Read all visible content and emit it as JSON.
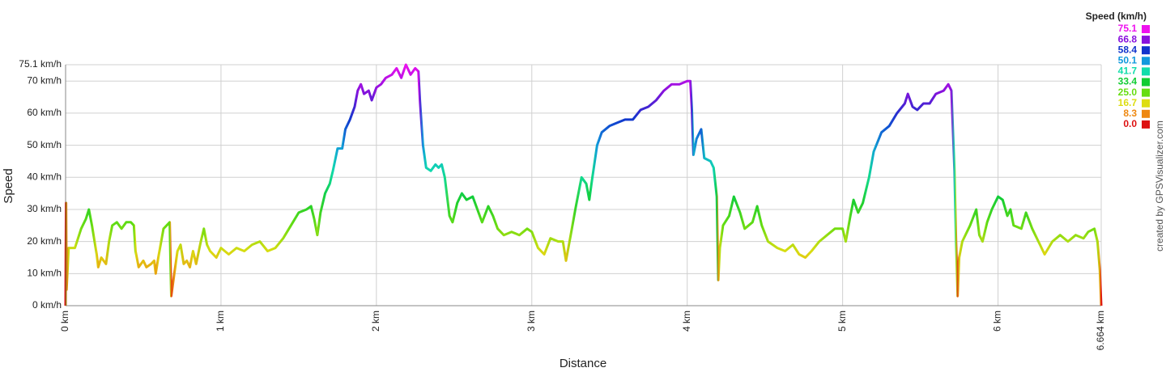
{
  "chart_data": {
    "type": "line",
    "title": "Speed (km/h)",
    "credit": "created by GPSVisualizer.com",
    "x_label": "Distance",
    "y_label": "Speed",
    "xlim": [
      0,
      6.664
    ],
    "ylim": [
      0,
      75.1
    ],
    "xticks": [
      {
        "value": 0,
        "label": "0 km"
      },
      {
        "value": 1,
        "label": "1 km"
      },
      {
        "value": 2,
        "label": "2 km"
      },
      {
        "value": 3,
        "label": "3 km"
      },
      {
        "value": 4,
        "label": "4 km"
      },
      {
        "value": 5,
        "label": "5 km"
      },
      {
        "value": 6,
        "label": "6 km"
      },
      {
        "value": 6.664,
        "label": "6.664 km"
      }
    ],
    "yticks": [
      {
        "value": 0,
        "label": "0 km/h"
      },
      {
        "value": 10,
        "label": "10 km/h"
      },
      {
        "value": 20,
        "label": "20 km/h"
      },
      {
        "value": 30,
        "label": "30 km/h"
      },
      {
        "value": 40,
        "label": "40 km/h"
      },
      {
        "value": 50,
        "label": "50 km/h"
      },
      {
        "value": 60,
        "label": "60 km/h"
      },
      {
        "value": 70,
        "label": "70 km/h"
      },
      {
        "value": 75.1,
        "label": "75.1 km/h"
      }
    ],
    "grid": true,
    "color_scale": [
      {
        "value": 75.1,
        "label": "75.1",
        "color": "#ee11ee"
      },
      {
        "value": 66.8,
        "label": "66.8",
        "color": "#8811dd"
      },
      {
        "value": 58.4,
        "label": "58.4",
        "color": "#1133cc"
      },
      {
        "value": 50.1,
        "label": "50.1",
        "color": "#1199dd"
      },
      {
        "value": 41.7,
        "label": "41.7",
        "color": "#11ddaa"
      },
      {
        "value": 33.4,
        "label": "33.4",
        "color": "#11cc33"
      },
      {
        "value": 25.0,
        "label": "25.0",
        "color": "#66dd11"
      },
      {
        "value": 16.7,
        "label": "16.7",
        "color": "#dddd11"
      },
      {
        "value": 8.3,
        "label": "8.3",
        "color": "#ee8811"
      },
      {
        "value": 0.0,
        "label": "0.0",
        "color": "#dd1111"
      }
    ],
    "x": [
      0,
      0.003,
      0.006,
      0.02,
      0.06,
      0.1,
      0.13,
      0.15,
      0.17,
      0.2,
      0.21,
      0.23,
      0.26,
      0.28,
      0.3,
      0.33,
      0.36,
      0.39,
      0.42,
      0.44,
      0.45,
      0.47,
      0.5,
      0.52,
      0.55,
      0.57,
      0.58,
      0.6,
      0.63,
      0.65,
      0.67,
      0.675,
      0.68,
      0.7,
      0.72,
      0.74,
      0.76,
      0.78,
      0.8,
      0.82,
      0.84,
      0.87,
      0.89,
      0.91,
      0.93,
      0.97,
      1.0,
      1.05,
      1.1,
      1.15,
      1.2,
      1.25,
      1.3,
      1.35,
      1.4,
      1.45,
      1.5,
      1.55,
      1.58,
      1.6,
      1.62,
      1.64,
      1.67,
      1.7,
      1.72,
      1.75,
      1.78,
      1.8,
      1.83,
      1.86,
      1.88,
      1.9,
      1.92,
      1.95,
      1.97,
      2.0,
      2.03,
      2.06,
      2.1,
      2.13,
      2.16,
      2.19,
      2.22,
      2.25,
      2.27,
      2.28,
      2.3,
      2.32,
      2.35,
      2.38,
      2.4,
      2.42,
      2.44,
      2.47,
      2.49,
      2.52,
      2.55,
      2.58,
      2.62,
      2.65,
      2.68,
      2.72,
      2.75,
      2.78,
      2.82,
      2.87,
      2.92,
      2.97,
      3.0,
      3.04,
      3.08,
      3.12,
      3.17,
      3.2,
      3.22,
      3.25,
      3.28,
      3.32,
      3.35,
      3.37,
      3.39,
      3.42,
      3.45,
      3.5,
      3.55,
      3.6,
      3.65,
      3.7,
      3.75,
      3.8,
      3.85,
      3.9,
      3.95,
      4.0,
      4.02,
      4.03,
      4.04,
      4.06,
      4.09,
      4.11,
      4.15,
      4.17,
      4.19,
      4.2,
      4.21,
      4.23,
      4.27,
      4.3,
      4.34,
      4.37,
      4.42,
      4.45,
      4.48,
      4.52,
      4.58,
      4.63,
      4.68,
      4.72,
      4.76,
      4.8,
      4.85,
      4.9,
      4.95,
      5.0,
      5.02,
      5.05,
      5.07,
      5.1,
      5.13,
      5.17,
      5.2,
      5.25,
      5.3,
      5.35,
      5.4,
      5.42,
      5.45,
      5.48,
      5.52,
      5.56,
      5.6,
      5.65,
      5.68,
      5.7,
      5.72,
      5.73,
      5.74,
      5.75,
      5.77,
      5.82,
      5.86,
      5.88,
      5.9,
      5.93,
      5.96,
      6.0,
      6.03,
      6.06,
      6.08,
      6.1,
      6.15,
      6.18,
      6.22,
      6.27,
      6.3,
      6.35,
      6.4,
      6.45,
      6.5,
      6.55,
      6.58,
      6.62,
      6.64,
      6.655,
      6.664
    ],
    "series": [
      {
        "name": "Speed",
        "values": [
          0,
          32,
          5,
          18,
          18,
          24,
          27,
          30,
          25,
          16,
          12,
          15,
          13,
          20,
          25,
          26,
          24,
          26,
          26,
          25,
          17,
          12,
          14,
          12,
          13,
          14,
          10,
          16,
          24,
          25,
          26,
          13,
          3,
          10,
          17,
          19,
          13,
          14,
          12,
          17,
          13,
          20,
          24,
          19,
          17,
          15,
          18,
          16,
          18,
          17,
          19,
          20,
          17,
          18,
          21,
          25,
          29,
          30,
          31,
          27,
          22,
          29,
          35,
          38,
          42,
          49,
          49,
          55,
          58,
          62,
          67,
          69,
          66,
          67,
          64,
          68,
          69,
          71,
          72,
          74,
          71,
          75.1,
          72,
          74,
          73,
          64,
          50,
          43,
          42,
          44,
          43,
          44,
          40,
          28,
          26,
          32,
          35,
          33,
          34,
          30,
          26,
          31,
          28,
          24,
          22,
          23,
          22,
          24,
          23,
          18,
          16,
          21,
          20,
          20,
          14,
          22,
          30,
          40,
          38,
          33,
          40,
          50,
          54,
          56,
          57,
          58,
          58,
          61,
          62,
          64,
          67,
          69,
          69,
          70,
          70,
          61,
          47,
          52,
          55,
          46,
          45,
          43,
          34,
          8,
          18,
          25,
          28,
          34,
          29,
          24,
          26,
          31,
          25,
          20,
          18,
          17,
          19,
          16,
          15,
          17,
          20,
          22,
          24,
          24,
          20,
          28,
          33,
          29,
          32,
          40,
          48,
          54,
          56,
          60,
          63,
          66,
          62,
          61,
          63,
          63,
          66,
          67,
          69,
          67,
          42,
          20,
          3,
          15,
          20,
          25,
          30,
          22,
          20,
          26,
          30,
          34,
          33,
          28,
          30,
          25,
          24,
          29,
          24,
          19,
          16,
          20,
          22,
          20,
          22,
          21,
          23,
          24,
          20,
          11,
          0
        ]
      }
    ]
  }
}
